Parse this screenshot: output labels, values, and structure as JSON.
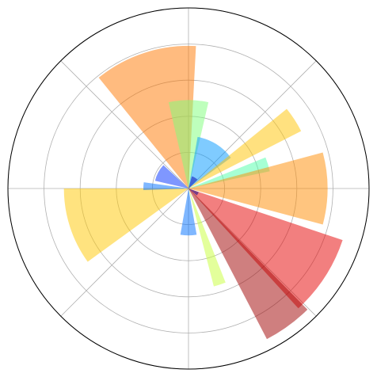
{
  "chart_data": {
    "type": "polar_bar",
    "theta": [
      108,
      90,
      58,
      33,
      17,
      0,
      -33,
      -54,
      -72,
      -90,
      198,
      177,
      152,
      60,
      -30
    ],
    "widths": [
      42,
      26,
      44,
      12,
      10,
      30,
      29,
      17,
      7,
      20,
      36,
      10,
      30,
      30,
      20
    ],
    "values": [
      7.9,
      4.9,
      2.9,
      7.0,
      4.6,
      7.7,
      9.0,
      9.4,
      5.6,
      2.6,
      6.9,
      2.5,
      1.9,
      0.7,
      0.6
    ],
    "colors": [
      "#ff7700",
      "#7dff7a",
      "#0098ff",
      "#ffc400",
      "#4dffaa",
      "#ff8c00",
      "#e50000",
      "#a00000",
      "#c8ff37",
      "#0070ff",
      "#ffc800",
      "#0070ff",
      "#0030ff",
      "#0000b0",
      "#000090"
    ],
    "alpha": 0.5,
    "rlim": [
      0,
      10
    ],
    "rticks": [
      2,
      4,
      6,
      8,
      10
    ],
    "thetaticks": [
      0,
      45,
      90,
      135,
      180,
      225,
      270,
      315
    ],
    "grid": true
  }
}
